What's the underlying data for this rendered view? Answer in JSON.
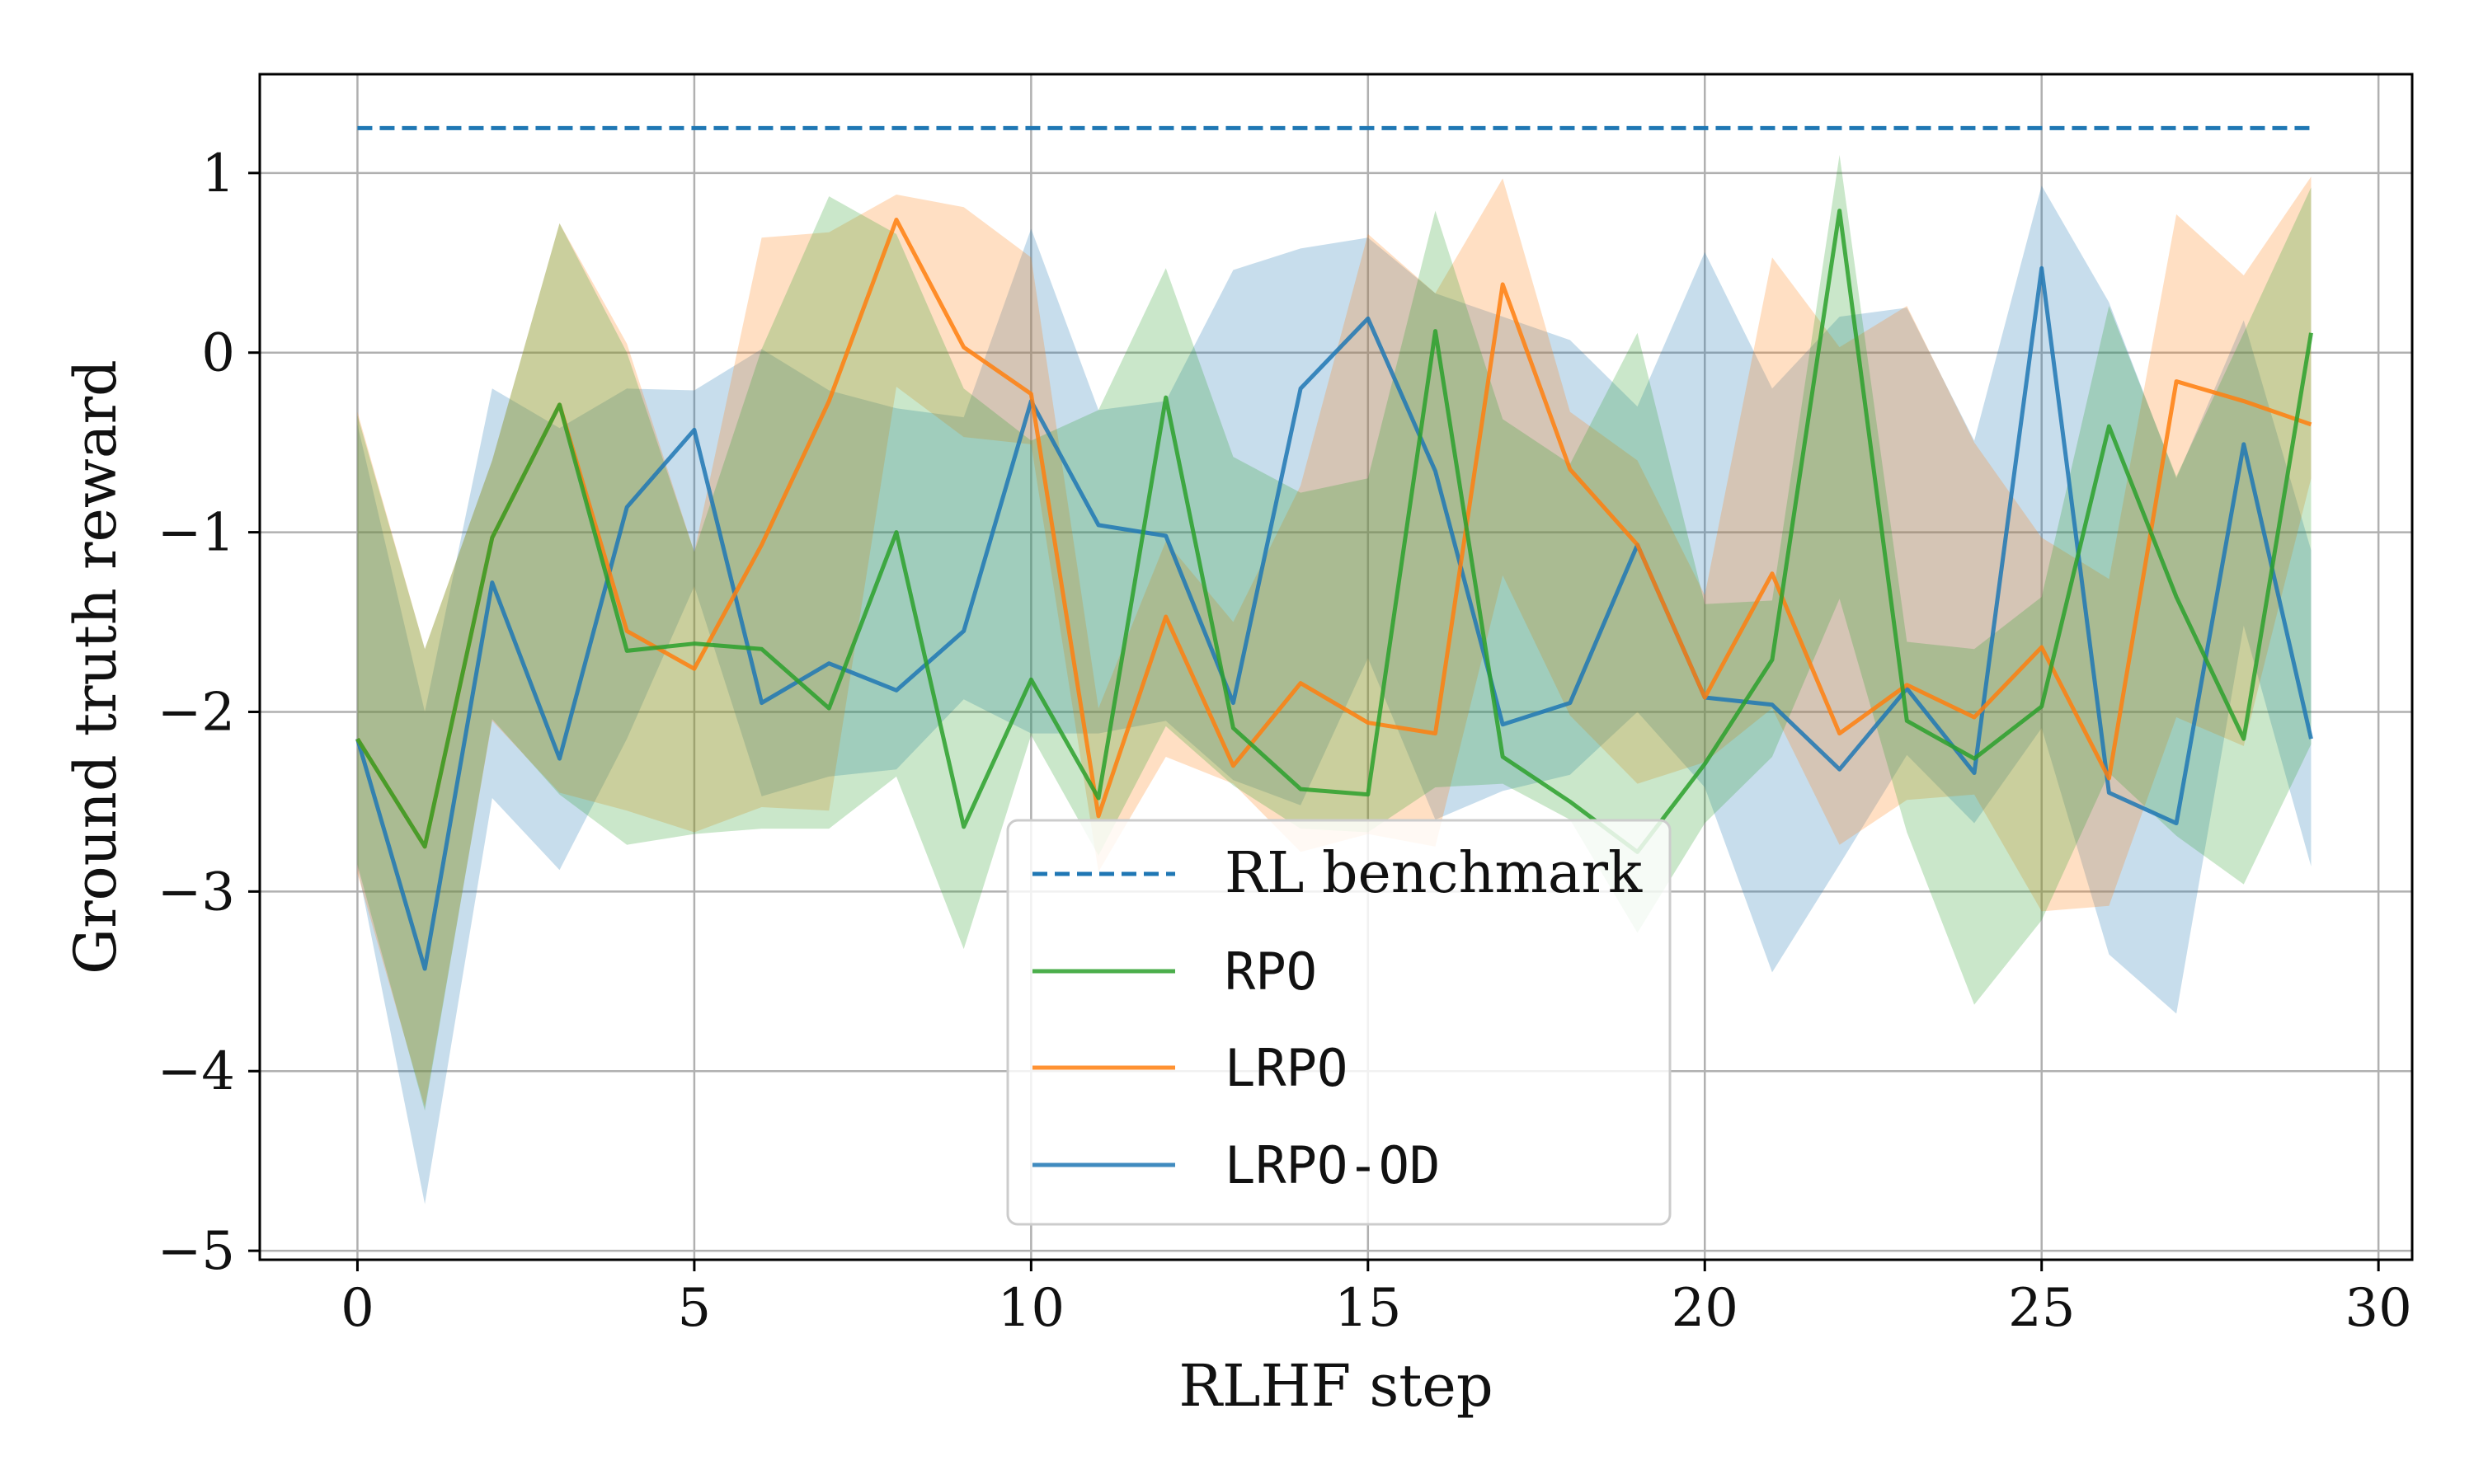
{
  "chart_data": {
    "type": "line",
    "title": "",
    "xlabel": "RLHF step",
    "ylabel": "Ground truth reward",
    "xlim": [
      -1.45,
      30.5
    ],
    "ylim": [
      -5.05,
      1.55
    ],
    "xticks": [
      0,
      5,
      10,
      15,
      20,
      25,
      30
    ],
    "yticks": [
      1,
      0,
      -1,
      -2,
      -3,
      -4,
      -5
    ],
    "xtick_labels": [
      "0",
      "5",
      "10",
      "15",
      "20",
      "25",
      "30"
    ],
    "ytick_labels": [
      "1",
      "0",
      "−1",
      "−2",
      "−3",
      "−4",
      "−5"
    ],
    "grid": true,
    "legend_position": "lower-center",
    "benchmark": {
      "name": "RL benchmark",
      "value": 1.25,
      "x_range": [
        0,
        29
      ],
      "color": "#1f77b4",
      "style": "dashed"
    },
    "x": [
      0,
      1,
      2,
      3,
      4,
      5,
      6,
      7,
      8,
      9,
      10,
      11,
      12,
      13,
      14,
      15,
      16,
      17,
      18,
      19,
      20,
      21,
      22,
      23,
      24,
      25,
      26,
      27,
      28,
      29
    ],
    "series": [
      {
        "name": "LRPO-OD",
        "color": "#1f77b4",
        "values": [
          -2.15,
          -3.43,
          -1.28,
          -2.26,
          -0.86,
          -0.43,
          -1.95,
          -1.73,
          -1.88,
          -1.55,
          -0.27,
          -0.96,
          -1.02,
          -1.95,
          -0.2,
          0.19,
          -0.66,
          -2.07,
          -1.95,
          -1.07,
          -1.92,
          -1.96,
          -2.32,
          -1.87,
          -2.34,
          0.47,
          -2.45,
          -2.62,
          -0.51,
          -2.15
        ],
        "upper": [
          -0.4,
          -2.0,
          -0.2,
          -0.42,
          -0.2,
          -0.21,
          0.02,
          -0.21,
          -0.31,
          -0.36,
          0.69,
          -0.32,
          -0.27,
          0.46,
          0.58,
          0.64,
          0.33,
          0.2,
          0.07,
          -0.3,
          0.56,
          -0.2,
          0.2,
          0.25,
          -0.49,
          0.93,
          0.28,
          -0.7,
          0.18,
          -1.1
        ],
        "lower": [
          -2.86,
          -4.74,
          -2.48,
          -2.88,
          -2.15,
          -1.3,
          -2.47,
          -2.36,
          -2.32,
          -1.93,
          -2.12,
          -2.12,
          -2.05,
          -2.38,
          -2.52,
          -1.7,
          -2.6,
          -2.44,
          -2.35,
          -2.0,
          -2.42,
          -3.45,
          -2.85,
          -2.24,
          -2.62,
          -2.09,
          -3.35,
          -3.68,
          -1.52,
          -2.86
        ]
      },
      {
        "name": "LRPO",
        "color": "#ff7f0e",
        "values": [
          -2.15,
          -2.75,
          -1.03,
          -0.29,
          -1.55,
          -1.76,
          -1.07,
          -0.27,
          0.74,
          0.03,
          -0.23,
          -2.58,
          -1.47,
          -2.3,
          -1.84,
          -2.06,
          -2.12,
          0.38,
          -0.65,
          -1.07,
          -1.92,
          -1.23,
          -2.12,
          -1.85,
          -2.03,
          -1.64,
          -2.37,
          -0.16,
          -0.27,
          -0.4
        ],
        "upper": [
          -0.33,
          -1.65,
          -0.6,
          0.72,
          0.05,
          -1.11,
          0.64,
          0.67,
          0.88,
          0.81,
          0.53,
          -1.98,
          -1.05,
          -1.5,
          -0.74,
          0.66,
          0.33,
          0.97,
          -0.33,
          -0.6,
          -1.35,
          0.53,
          0.03,
          0.26,
          -0.5,
          -1.03,
          -1.26,
          0.77,
          0.43,
          0.98
        ],
        "lower": [
          -2.9,
          -4.2,
          -2.05,
          -2.45,
          -2.55,
          -2.67,
          -2.53,
          -2.55,
          -0.19,
          -0.47,
          -0.51,
          -2.89,
          -2.25,
          -2.4,
          -2.78,
          -2.68,
          -2.75,
          -1.24,
          -2.02,
          -2.4,
          -2.28,
          -1.98,
          -2.74,
          -2.49,
          -2.46,
          -3.11,
          -3.08,
          -2.03,
          -2.19,
          -0.7
        ]
      },
      {
        "name": "RPO",
        "color": "#2ca02c",
        "values": [
          -2.15,
          -2.75,
          -1.03,
          -0.29,
          -1.66,
          -1.62,
          -1.65,
          -1.98,
          -1.0,
          -2.64,
          -1.82,
          -2.48,
          -0.25,
          -2.09,
          -2.43,
          -2.46,
          0.12,
          -2.25,
          -2.5,
          -2.78,
          -2.29,
          -1.71,
          0.79,
          -2.05,
          -2.26,
          -1.97,
          -0.41,
          -1.36,
          -2.15,
          0.11
        ],
        "upper": [
          -0.35,
          -1.65,
          -0.6,
          0.72,
          0.0,
          -1.11,
          0.02,
          0.87,
          0.66,
          -0.2,
          -0.49,
          -0.32,
          0.47,
          -0.58,
          -0.78,
          -0.7,
          0.79,
          -0.37,
          -0.62,
          0.11,
          -1.4,
          -1.38,
          1.1,
          -1.61,
          -1.65,
          -1.36,
          0.26,
          -0.69,
          0.11,
          0.92
        ],
        "lower": [
          -2.85,
          -4.22,
          -2.04,
          -2.46,
          -2.74,
          -2.68,
          -2.65,
          -2.65,
          -2.36,
          -3.32,
          -2.13,
          -2.8,
          -2.08,
          -2.41,
          -2.65,
          -2.67,
          -2.42,
          -2.4,
          -2.6,
          -3.23,
          -2.62,
          -2.25,
          -1.37,
          -2.67,
          -3.63,
          -3.16,
          -2.34,
          -2.69,
          -2.96,
          -2.18
        ]
      }
    ],
    "legend": [
      {
        "key": "benchmark",
        "label": "RL benchmark"
      },
      {
        "key": "RPO",
        "label": "RPO"
      },
      {
        "key": "LRPO",
        "label": "LRPO"
      },
      {
        "key": "LRPO-OD",
        "label": "LRPO-OD"
      }
    ]
  }
}
